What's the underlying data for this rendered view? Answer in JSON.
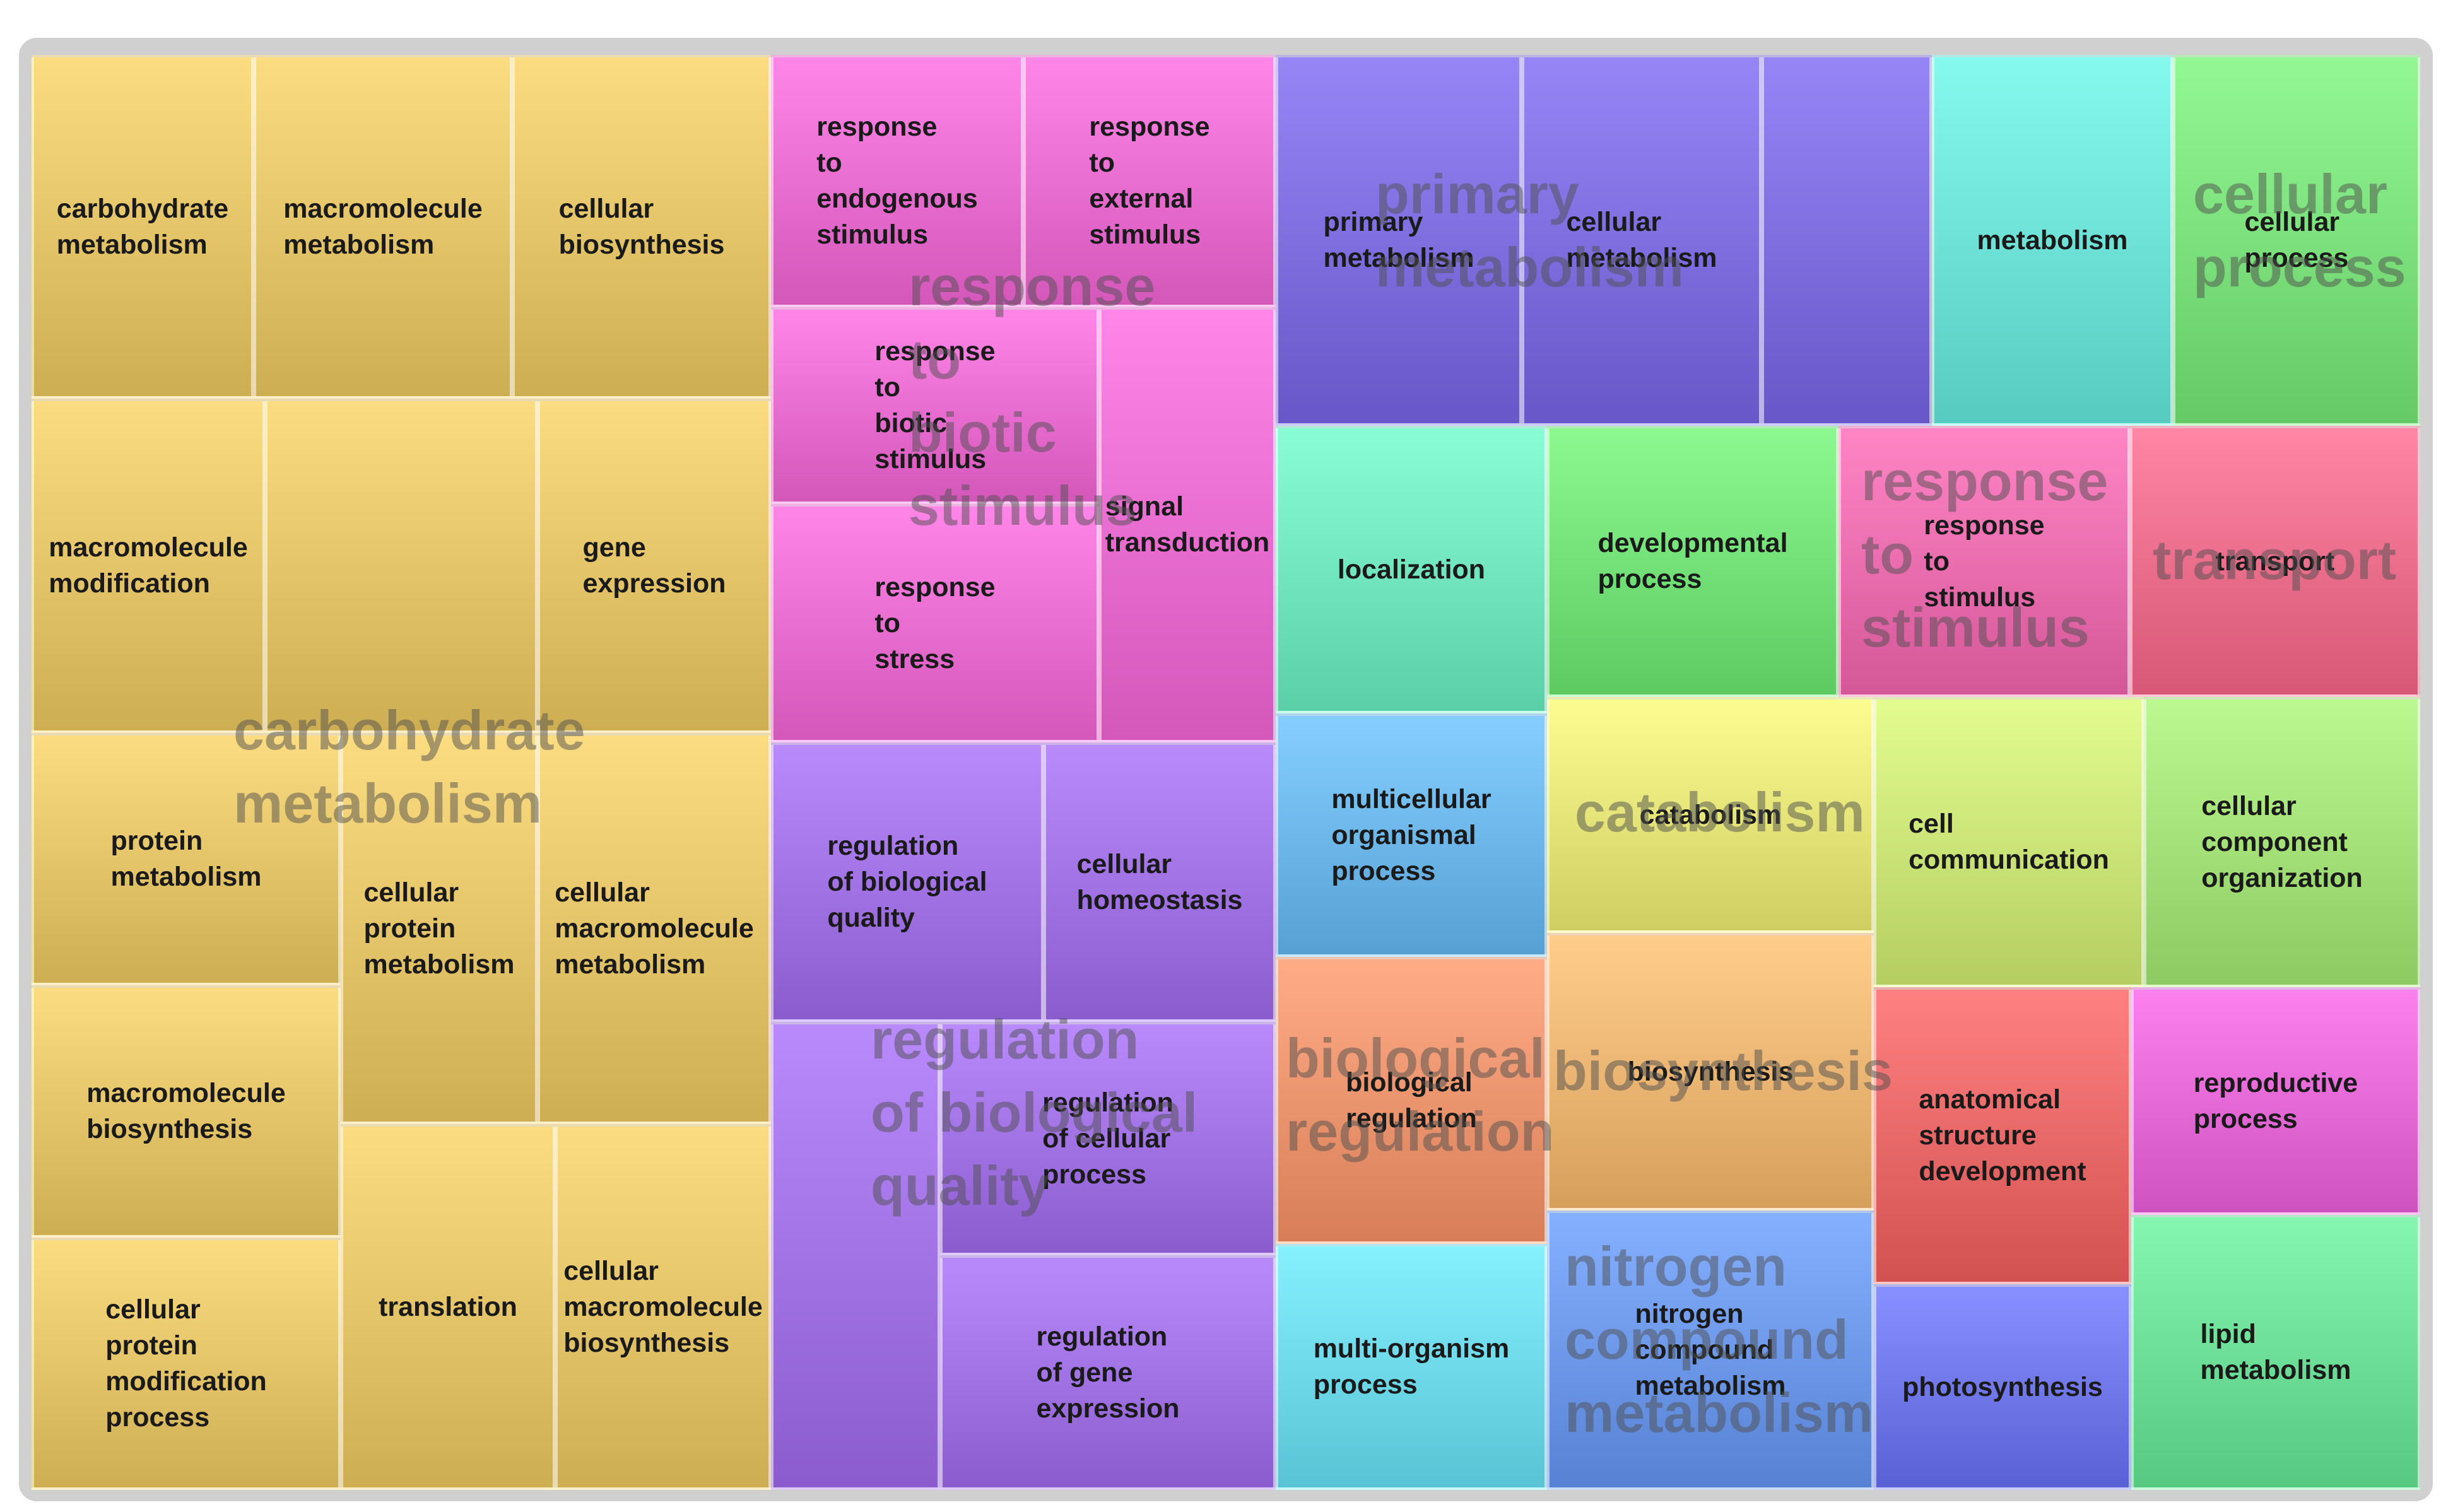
{
  "treemap": {
    "groups": [
      {
        "id": "carbohydrate-metabolism",
        "label": "carbohydrate\nmetabolism",
        "color": "#e6c66a",
        "tiles": [
          "carbohydrate\nmetabolism",
          "macromolecule\nmetabolism",
          "cellular\nbiosynthesis",
          "macromolecule\nmodification",
          "",
          "gene\nexpression",
          "protein\nmetabolism",
          "cellular\nprotein\nmetabolism",
          "cellular\nmacromolecule\nmetabolism",
          "macromolecule\nbiosynthesis",
          "cellular\nprotein\nmodification\nprocess",
          "translation",
          "cellular\nmacromolecule\nbiosynthesis"
        ]
      },
      {
        "id": "response-to-biotic-stimulus",
        "label": "response\nto\nbiotic\nstimulus",
        "color": "#ec6fd2",
        "tiles": [
          "response\nto\nendogenous\nstimulus",
          "response\nto\nexternal\nstimulus",
          "response\nto\nbiotic\nstimulus",
          "signal\ntransduction",
          "response\nto\nstress"
        ]
      },
      {
        "id": "regulation-of-biological-quality",
        "label": "regulation\nof biological\nquality",
        "color": "#a374e6",
        "tiles": [
          "regulation\nof biological\nquality",
          "cellular\nhomeostasis",
          "",
          "regulation\nof cellular\nprocess",
          "regulation\nof gene\nexpression"
        ]
      },
      {
        "id": "primary-metabolism",
        "label": "primary\nmetabolism",
        "color": "#7f6fe0",
        "tiles": [
          "primary\nmetabolism",
          "cellular\nmetabolism",
          ""
        ]
      },
      {
        "id": "metabolism",
        "label": "",
        "color": "#6fe3d8",
        "tiles": [
          "metabolism"
        ]
      },
      {
        "id": "cellular-process",
        "label": "cellular\nprocess",
        "color": "#7de27d",
        "tiles": [
          "cellular\nprocess"
        ]
      },
      {
        "id": "localization",
        "label": "",
        "color": "#72e7c0",
        "tiles": [
          "localization"
        ]
      },
      {
        "id": "developmental-process",
        "label": "",
        "color": "#75e27a",
        "tiles": [
          "developmental\nprocess"
        ]
      },
      {
        "id": "response-to-stimulus",
        "label": "response\nto\nstimulus",
        "color": "#ec6fb0",
        "tiles": [
          "response\nto\nstimulus"
        ]
      },
      {
        "id": "transport",
        "label": "transport",
        "color": "#ef6f8e",
        "tiles": [
          "transport"
        ]
      },
      {
        "id": "multicellular-organismal-process",
        "label": "",
        "color": "#6fb8ec",
        "tiles": [
          "multicellular\norganismal\nprocess"
        ]
      },
      {
        "id": "catabolism",
        "label": "catabolism",
        "color": "#e6e67a",
        "tiles": [
          "catabolism"
        ]
      },
      {
        "id": "cell-communication",
        "label": "",
        "color": "#cde67a",
        "tiles": [
          "cell\ncommunication"
        ]
      },
      {
        "id": "cellular-component-organization",
        "label": "",
        "color": "#a6e27a",
        "tiles": [
          "cellular\ncomponent\norganization"
        ]
      },
      {
        "id": "biological-regulation",
        "label": "biological\nregulation",
        "color": "#ef9670",
        "tiles": [
          "biological\nregulation"
        ]
      },
      {
        "id": "biosynthesis",
        "label": "biosynthesis",
        "color": "#efb774",
        "tiles": [
          "biosynthesis"
        ]
      },
      {
        "id": "anatomical-structure-development",
        "label": "",
        "color": "#ea6a6a",
        "tiles": [
          "anatomical\nstructure\ndevelopment"
        ]
      },
      {
        "id": "reproductive-process",
        "label": "",
        "color": "#e66ad8",
        "tiles": [
          "reproductive\nprocess"
        ]
      },
      {
        "id": "nitrogen-compound-metabolism",
        "label": "nitrogen\ncompound\nmetabolism",
        "color": "#6f9aec",
        "tiles": [
          "nitrogen\ncompound\nmetabolism"
        ]
      },
      {
        "id": "multi-organism-process",
        "label": "",
        "color": "#6fdbec",
        "tiles": [
          "multi-organism\nprocess"
        ]
      },
      {
        "id": "photosynthesis",
        "label": "",
        "color": "#7279ec",
        "tiles": [
          "photosynthesis"
        ]
      },
      {
        "id": "lipid-metabolism",
        "label": "",
        "color": "#6fe09a",
        "tiles": [
          "lipid\nmetabolism"
        ]
      }
    ]
  }
}
